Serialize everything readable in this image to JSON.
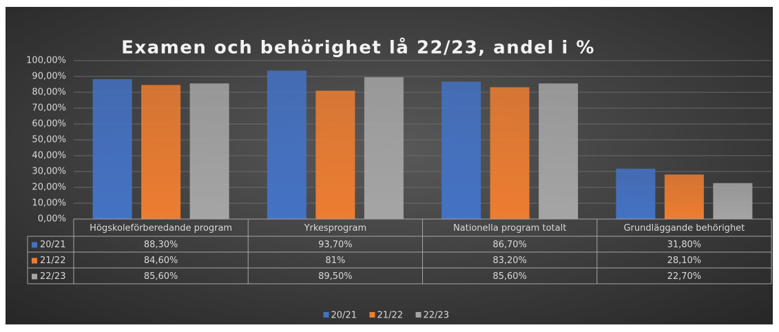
{
  "chart_data": {
    "type": "bar",
    "title": "Examen och behörighet lå 22/23, andel i %",
    "categories": [
      "Högskoleförberedande program",
      "Yrkesprogram",
      "Nationella program totalt",
      "Grundläggande behörighet"
    ],
    "series": [
      {
        "name": "20/21",
        "color": "#4472c4",
        "values": [
          88.3,
          93.7,
          86.7,
          31.8
        ],
        "value_labels": [
          "88,30%",
          "93,70%",
          "86,70%",
          "31,80%"
        ]
      },
      {
        "name": "21/22",
        "color": "#ed7d31",
        "values": [
          84.6,
          81,
          83.2,
          28.1
        ],
        "value_labels": [
          "84,60%",
          "81%",
          "83,20%",
          "28,10%"
        ]
      },
      {
        "name": "22/23",
        "color": "#a5a5a5",
        "values": [
          85.6,
          89.5,
          85.6,
          22.7
        ],
        "value_labels": [
          "85,60%",
          "89,50%",
          "85,60%",
          "22,70%"
        ]
      }
    ],
    "ylim": [
      0,
      100
    ],
    "yticks": [
      {
        "value": 0,
        "label": "0,00%"
      },
      {
        "value": 10,
        "label": "10,00%"
      },
      {
        "value": 20,
        "label": "20,00%"
      },
      {
        "value": 30,
        "label": "30,00%"
      },
      {
        "value": 40,
        "label": "40,00%"
      },
      {
        "value": 50,
        "label": "50,00%"
      },
      {
        "value": 60,
        "label": "60,00%"
      },
      {
        "value": 70,
        "label": "70,00%"
      },
      {
        "value": 80,
        "label": "80,00%"
      },
      {
        "value": 90,
        "label": "90,00%"
      },
      {
        "value": 100,
        "label": "100,00%"
      }
    ],
    "grid": true,
    "legend": "bottom"
  }
}
